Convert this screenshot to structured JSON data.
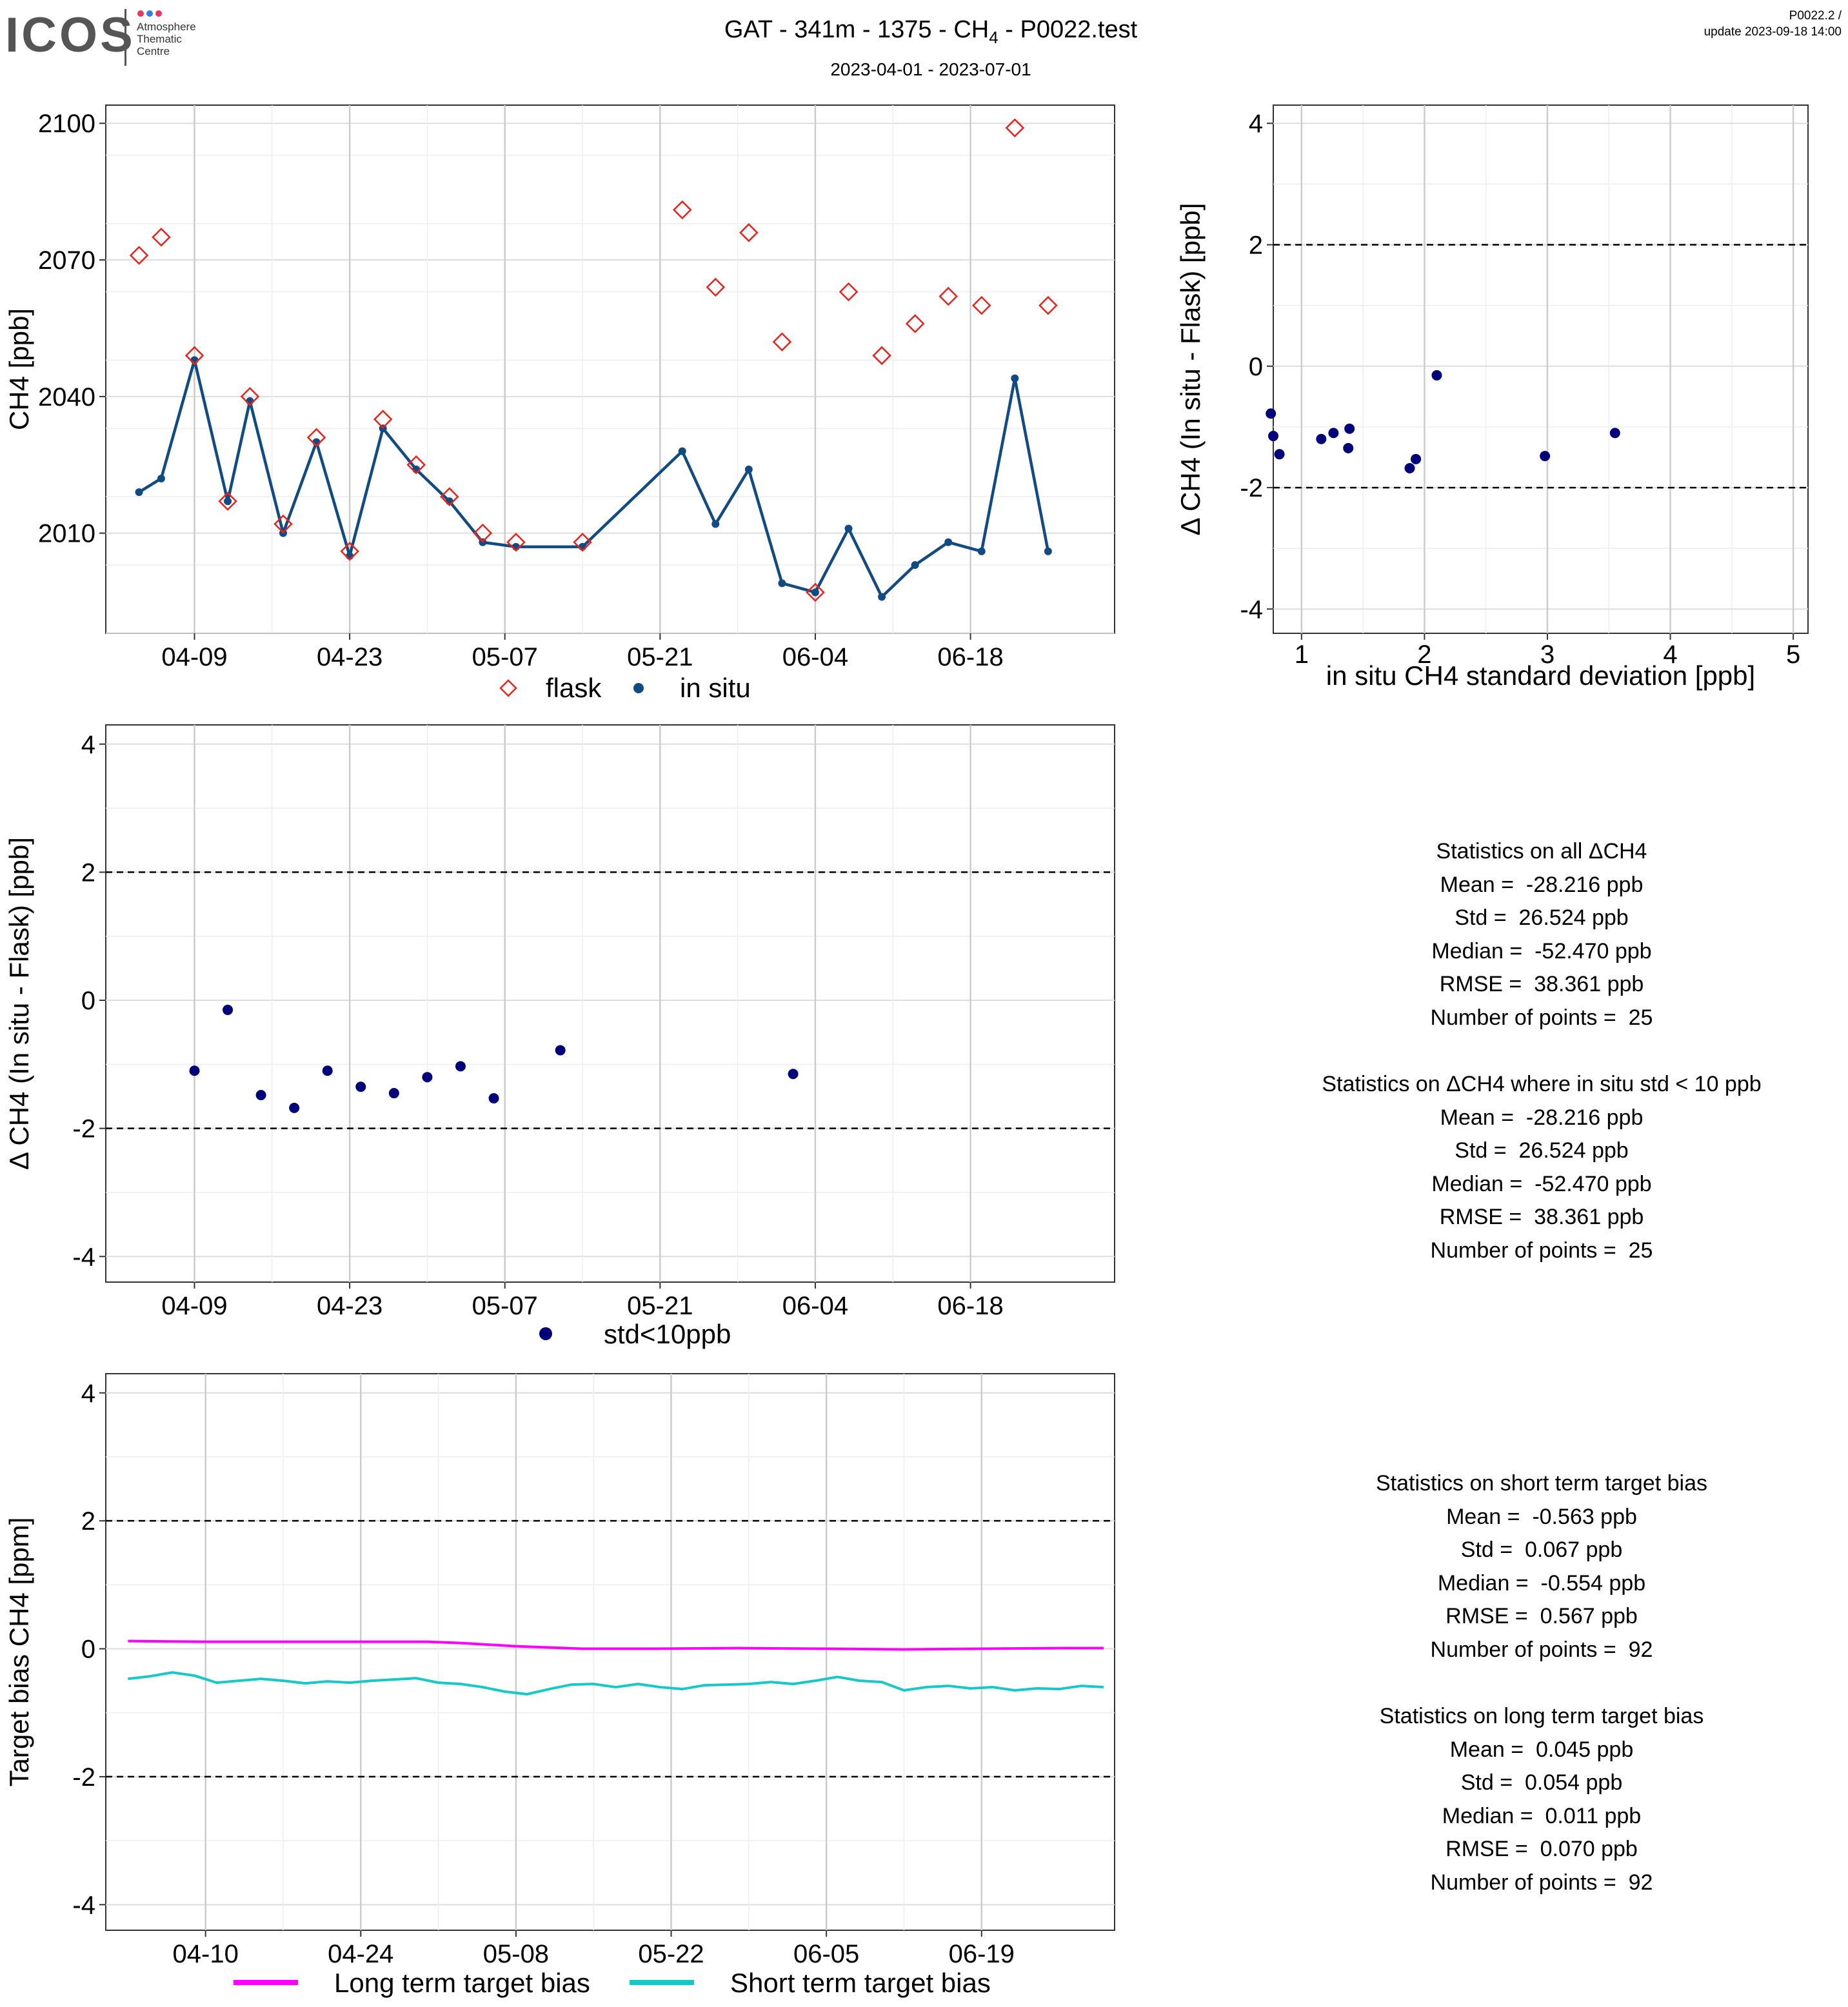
{
  "logo": {
    "brand": "ICOS",
    "line1": "Atmosphere",
    "line2": "Thematic",
    "line3": "Centre",
    "dot_colors": [
      "#e8365d",
      "#2f80ed",
      "#e8365d"
    ]
  },
  "header": {
    "title": "GAT - 341m - 1375 - CH",
    "title_sub": "4",
    "title_suffix": " - P0022.test",
    "date_range": "2023-04-01 - 2023-07-01",
    "version": "P0022.2 /",
    "update": "update  2023-09-18 14:00"
  },
  "colors": {
    "flask": "#e8231b",
    "insitu": "#124a82",
    "std_points": "#00007a",
    "long_term": "#ff00ff",
    "short_term": "#17c8c8"
  },
  "chart_data": [
    {
      "type": "line",
      "panel": "timeseries",
      "xlabel": "",
      "ylabel": "CH4 [ppb]",
      "x_ticks": [
        "04-09",
        "04-23",
        "05-07",
        "05-21",
        "06-04",
        "06-18"
      ],
      "y_ticks": [
        "2010",
        "2040",
        "2070",
        "2100"
      ],
      "xlim": [
        "2023-04-01",
        "2023-07-01"
      ],
      "ylim": [
        1988,
        2104
      ],
      "legend": {
        "position": "bottom",
        "entries": [
          "flask",
          "in situ"
        ]
      },
      "series": [
        {
          "name": "flask",
          "marker": "diamond",
          "x": [
            "2023-04-04",
            "2023-04-06",
            "2023-04-09",
            "2023-04-12",
            "2023-04-14",
            "2023-04-17",
            "2023-04-20",
            "2023-04-23",
            "2023-04-26",
            "2023-04-29",
            "2023-05-02",
            "2023-05-05",
            "2023-05-08",
            "2023-05-14",
            "2023-05-23",
            "2023-05-26",
            "2023-05-29",
            "2023-06-01",
            "2023-06-04",
            "2023-06-07",
            "2023-06-10",
            "2023-06-13",
            "2023-06-16",
            "2023-06-19",
            "2023-06-22",
            "2023-06-25"
          ],
          "y": [
            2071,
            2075,
            2049,
            2017,
            2040,
            2012,
            2031,
            2006,
            2035,
            2025,
            2018,
            2010,
            2008,
            2008,
            2081,
            2064,
            2076,
            2052,
            1997,
            2063,
            2049,
            2056,
            2062,
            2060,
            2099,
            2060
          ]
        },
        {
          "name": "in situ",
          "marker": "point",
          "x": [
            "2023-04-04",
            "2023-04-06",
            "2023-04-09",
            "2023-04-12",
            "2023-04-14",
            "2023-04-17",
            "2023-04-20",
            "2023-04-23",
            "2023-04-26",
            "2023-04-29",
            "2023-05-02",
            "2023-05-05",
            "2023-05-08",
            "2023-05-14",
            "2023-05-23",
            "2023-05-26",
            "2023-05-29",
            "2023-06-01",
            "2023-06-04",
            "2023-06-07",
            "2023-06-10",
            "2023-06-13",
            "2023-06-16",
            "2023-06-19",
            "2023-06-22",
            "2023-06-25"
          ],
          "y": [
            2019,
            2022,
            2048,
            2017,
            2039,
            2010,
            2030,
            2005,
            2033,
            2024,
            2017,
            2008,
            2007,
            2007,
            2028,
            2012,
            2024,
            1999,
            1997,
            2011,
            1996,
            2003,
            2008,
            2006,
            2044,
            2006
          ]
        }
      ]
    },
    {
      "type": "scatter",
      "panel": "delta_vs_std",
      "xlabel": "in situ CH4 standard deviation [ppb]",
      "ylabel": "Δ CH4 (In situ - Flask) [ppb]",
      "x_ticks": [
        "1",
        "2",
        "3",
        "4",
        "5"
      ],
      "y_ticks": [
        "-4",
        "-2",
        "0",
        "2",
        "4"
      ],
      "xlim": [
        0.77,
        5.12
      ],
      "ylim": [
        -4.4,
        4.3
      ],
      "hlines": [
        -2,
        2
      ],
      "x": [
        0.75,
        0.77,
        0.82,
        1.16,
        1.26,
        1.38,
        1.39,
        1.88,
        1.93,
        2.1,
        2.98,
        3.55
      ],
      "y": [
        -0.78,
        -1.15,
        -1.45,
        -1.2,
        -1.1,
        -1.35,
        -1.03,
        -1.68,
        -1.53,
        -0.15,
        -1.48,
        -1.1
      ]
    },
    {
      "type": "scatter",
      "panel": "delta_timeseries",
      "xlabel": "",
      "ylabel": "Δ CH4 (In situ - Flask) [ppb]",
      "x_ticks": [
        "04-09",
        "04-23",
        "05-07",
        "05-21",
        "06-04",
        "06-18"
      ],
      "y_ticks": [
        "-4",
        "-2",
        "0",
        "2",
        "4"
      ],
      "xlim": [
        "2023-04-01",
        "2023-07-01"
      ],
      "ylim": [
        -4.4,
        4.3
      ],
      "hlines": [
        -2,
        2
      ],
      "legend": {
        "position": "bottom",
        "entries": [
          "std<10ppb"
        ]
      },
      "x": [
        "2023-04-09",
        "2023-04-12",
        "2023-04-15",
        "2023-04-18",
        "2023-04-21",
        "2023-04-24",
        "2023-04-27",
        "2023-04-30",
        "2023-05-03",
        "2023-05-06",
        "2023-05-12",
        "2023-06-02"
      ],
      "y": [
        -1.1,
        -0.15,
        -1.48,
        -1.68,
        -1.1,
        -1.35,
        -1.45,
        -1.2,
        -1.03,
        -1.53,
        -0.78,
        -1.15
      ]
    },
    {
      "type": "line",
      "panel": "target_bias",
      "xlabel": "",
      "ylabel": "Target bias CH4 [ppm]",
      "x_ticks": [
        "04-10",
        "04-24",
        "05-08",
        "05-22",
        "06-05",
        "06-19"
      ],
      "y_ticks": [
        "-4",
        "-2",
        "0",
        "2",
        "4"
      ],
      "xlim": [
        "2023-04-01",
        "2023-07-01"
      ],
      "ylim": [
        -4.4,
        4.3
      ],
      "hlines": [
        -2,
        2
      ],
      "legend": {
        "position": "bottom",
        "entries": [
          "Long term target bias",
          "Short term target bias"
        ]
      },
      "series": [
        {
          "name": "Long term target bias",
          "x": [
            "2023-04-03",
            "2023-04-10",
            "2023-04-17",
            "2023-04-24",
            "2023-04-30",
            "2023-05-03",
            "2023-05-08",
            "2023-05-14",
            "2023-05-20",
            "2023-05-28",
            "2023-06-05",
            "2023-06-12",
            "2023-06-19",
            "2023-06-26",
            "2023-06-30"
          ],
          "y": [
            0.12,
            0.11,
            0.11,
            0.11,
            0.11,
            0.09,
            0.04,
            0.0,
            0.0,
            0.01,
            0.0,
            -0.01,
            0.0,
            0.01,
            0.01
          ]
        },
        {
          "name": "Short term target bias",
          "x": [
            "2023-04-03",
            "2023-04-05",
            "2023-04-07",
            "2023-04-09",
            "2023-04-11",
            "2023-04-13",
            "2023-04-15",
            "2023-04-17",
            "2023-04-19",
            "2023-04-21",
            "2023-04-23",
            "2023-04-25",
            "2023-04-27",
            "2023-04-29",
            "2023-05-01",
            "2023-05-03",
            "2023-05-05",
            "2023-05-07",
            "2023-05-09",
            "2023-05-11",
            "2023-05-13",
            "2023-05-15",
            "2023-05-17",
            "2023-05-19",
            "2023-05-21",
            "2023-05-23",
            "2023-05-25",
            "2023-05-27",
            "2023-05-29",
            "2023-05-31",
            "2023-06-02",
            "2023-06-04",
            "2023-06-06",
            "2023-06-08",
            "2023-06-10",
            "2023-06-12",
            "2023-06-14",
            "2023-06-16",
            "2023-06-18",
            "2023-06-20",
            "2023-06-22",
            "2023-06-24",
            "2023-06-26",
            "2023-06-28",
            "2023-06-30"
          ],
          "y": [
            -0.47,
            -0.43,
            -0.37,
            -0.42,
            -0.53,
            -0.5,
            -0.47,
            -0.5,
            -0.54,
            -0.51,
            -0.53,
            -0.5,
            -0.48,
            -0.46,
            -0.53,
            -0.55,
            -0.6,
            -0.67,
            -0.71,
            -0.63,
            -0.56,
            -0.55,
            -0.6,
            -0.55,
            -0.6,
            -0.63,
            -0.57,
            -0.56,
            -0.55,
            -0.52,
            -0.55,
            -0.5,
            -0.44,
            -0.5,
            -0.52,
            -0.65,
            -0.6,
            -0.58,
            -0.62,
            -0.6,
            -0.65,
            -0.62,
            -0.63,
            -0.58,
            -0.6
          ]
        }
      ]
    }
  ],
  "stats_all": {
    "title": "Statistics on all ΔCH4",
    "mean": "Mean =  -28.216 ppb",
    "std": "Std =  26.524 ppb",
    "median": "Median =  -52.470 ppb",
    "rmse": "RMSE =  38.361 ppb",
    "n": "Number of points =  25"
  },
  "stats_std": {
    "title": "Statistics on ΔCH4 where in situ std < 10 ppb",
    "mean": "Mean =  -28.216 ppb",
    "std": "Std =  26.524 ppb",
    "median": "Median =  -52.470 ppb",
    "rmse": "RMSE =  38.361 ppb",
    "n": "Number of points =  25"
  },
  "stats_short": {
    "title": "Statistics on short term target bias",
    "mean": "Mean =  -0.563 ppb",
    "std": "Std =  0.067 ppb",
    "median": "Median =  -0.554 ppb",
    "rmse": "RMSE =  0.567 ppb",
    "n": "Number of points =  92"
  },
  "stats_long": {
    "title": "Statistics on long term target bias",
    "mean": "Mean =  0.045 ppb",
    "std": "Std =  0.054 ppb",
    "median": "Median =  0.011 ppb",
    "rmse": "RMSE =  0.070 ppb",
    "n": "Number of points =  92"
  }
}
